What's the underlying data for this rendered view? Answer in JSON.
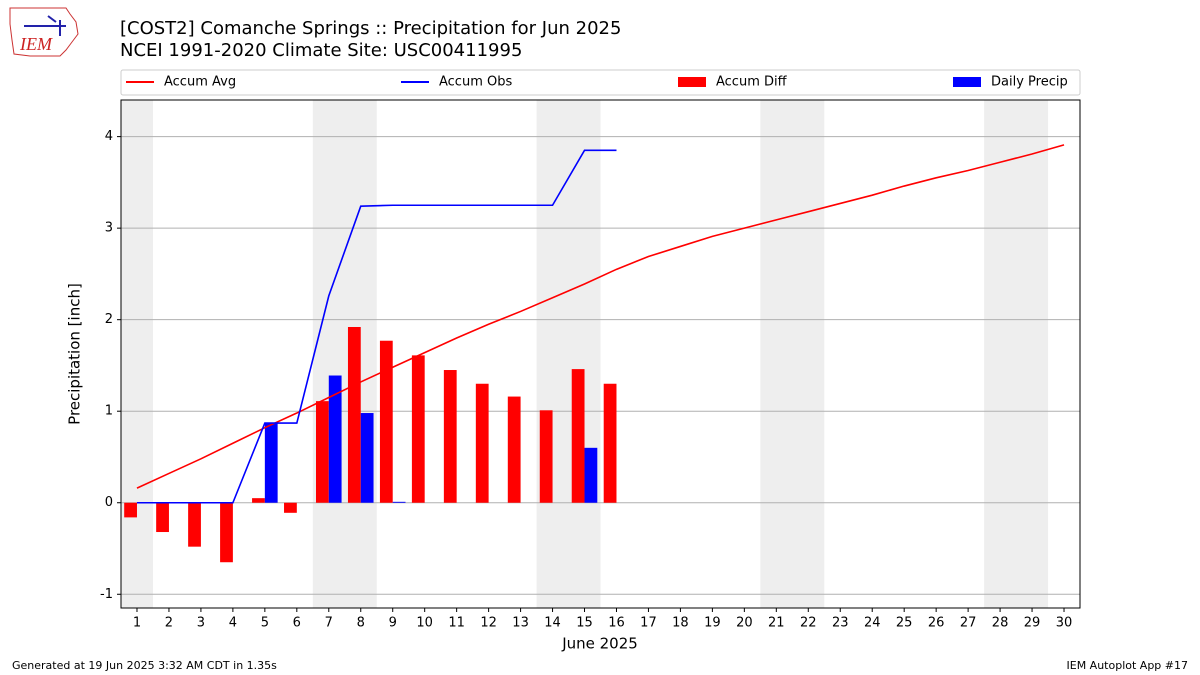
{
  "logo_text": "IEM",
  "chart_data": {
    "type": "bar",
    "title": "[COST2] Comanche Springs :: Precipitation for Jun 2025",
    "subtitle": "NCEI 1991-2020 Climate Site: USC00411995",
    "x_label": "June 2025",
    "y_label": "Precipitation [inch]",
    "x": [
      1,
      2,
      3,
      4,
      5,
      6,
      7,
      8,
      9,
      10,
      11,
      12,
      13,
      14,
      15,
      16,
      17,
      18,
      19,
      20,
      21,
      22,
      23,
      24,
      25,
      26,
      27,
      28,
      29,
      30
    ],
    "xlim": [
      0.5,
      30.5
    ],
    "xticks": [
      1,
      2,
      3,
      4,
      5,
      6,
      7,
      8,
      9,
      10,
      11,
      12,
      13,
      14,
      15,
      16,
      17,
      18,
      19,
      20,
      21,
      22,
      23,
      24,
      25,
      26,
      27,
      28,
      29,
      30
    ],
    "ylim": [
      -1.15,
      4.4
    ],
    "yticks": [
      -1,
      0,
      1,
      2,
      3,
      4
    ],
    "grid": true,
    "weekend_spans": [
      [
        0.5,
        1.5
      ],
      [
        6.5,
        8.5
      ],
      [
        13.5,
        15.5
      ],
      [
        20.5,
        22.5
      ],
      [
        27.5,
        29.5
      ]
    ],
    "series": [
      {
        "name": "Accum Avg",
        "type": "line",
        "color": "#ff0000",
        "values": [
          0.16,
          0.32,
          0.48,
          0.65,
          0.82,
          0.98,
          1.15,
          1.32,
          1.48,
          1.64,
          1.8,
          1.95,
          2.09,
          2.24,
          2.39,
          2.55,
          2.69,
          2.8,
          2.91,
          3.0,
          3.09,
          3.18,
          3.27,
          3.36,
          3.46,
          3.55,
          3.63,
          3.72,
          3.81,
          3.91
        ]
      },
      {
        "name": "Accum Obs",
        "type": "line",
        "color": "#0000ff",
        "values": [
          0,
          0,
          0,
          0,
          0.87,
          0.87,
          2.26,
          3.24,
          3.25,
          3.25,
          3.25,
          3.25,
          3.25,
          3.25,
          3.85,
          3.85,
          null,
          null,
          null,
          null,
          null,
          null,
          null,
          null,
          null,
          null,
          null,
          null,
          null,
          null
        ]
      },
      {
        "name": "Accum Diff",
        "type": "bar",
        "color": "#ff0000",
        "offset": -0.2,
        "width": 0.4,
        "values": [
          -0.16,
          -0.32,
          -0.48,
          -0.65,
          0.05,
          -0.11,
          1.11,
          1.92,
          1.77,
          1.61,
          1.45,
          1.3,
          1.16,
          1.01,
          1.46,
          1.3,
          null,
          null,
          null,
          null,
          null,
          null,
          null,
          null,
          null,
          null,
          null,
          null,
          null,
          null
        ]
      },
      {
        "name": "Daily Precip",
        "type": "bar",
        "color": "#0000ff",
        "offset": 0.2,
        "width": 0.4,
        "values": [
          0,
          0,
          0,
          0,
          0.87,
          0,
          1.39,
          0.98,
          0.01,
          0,
          0,
          0,
          0,
          0,
          0.6,
          0,
          null,
          null,
          null,
          null,
          null,
          null,
          null,
          null,
          null,
          null,
          null,
          null,
          null,
          null
        ]
      }
    ]
  },
  "footer": {
    "left": "Generated at 19 Jun 2025 3:32 AM CDT in 1.35s",
    "right": "IEM Autoplot App #17"
  }
}
